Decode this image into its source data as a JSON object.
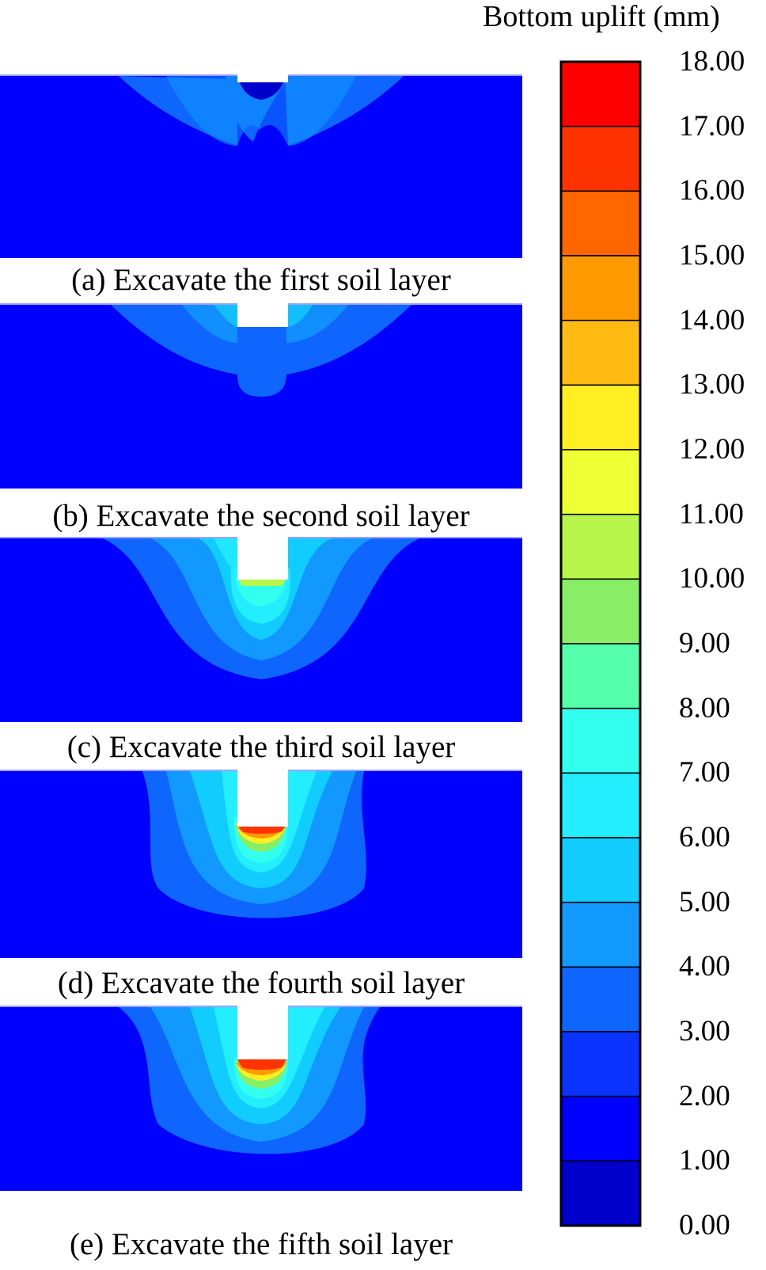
{
  "legend": {
    "title": "Bottom uplift (mm)",
    "ticks": [
      "18.00",
      "17.00",
      "16.00",
      "15.00",
      "14.00",
      "13.00",
      "12.00",
      "11.00",
      "10.00",
      "9.00",
      "8.00",
      "7.00",
      "6.00",
      "5.00",
      "4.00",
      "3.00",
      "2.00",
      "1.00",
      "0.00"
    ],
    "bands_top_to_bottom": [
      "#ff0000",
      "#ff3300",
      "#ff6600",
      "#ff9900",
      "#ffbb11",
      "#ffee22",
      "#eeff33",
      "#b8f54a",
      "#88ee66",
      "#55ffaa",
      "#33ffee",
      "#22eeff",
      "#11ccff",
      "#1199ff",
      "#0f66ff",
      "#0a33ff",
      "#0000ff",
      "#0000cc"
    ]
  },
  "panels": [
    {
      "caption": "(a) Excavate the first soil layer"
    },
    {
      "caption": "(b) Excavate the second soil layer"
    },
    {
      "caption": "(c) Excavate the third soil layer"
    },
    {
      "caption": "(d) Excavate the fourth soil layer"
    },
    {
      "caption": "(e) Excavate the fifth soil layer"
    }
  ]
}
